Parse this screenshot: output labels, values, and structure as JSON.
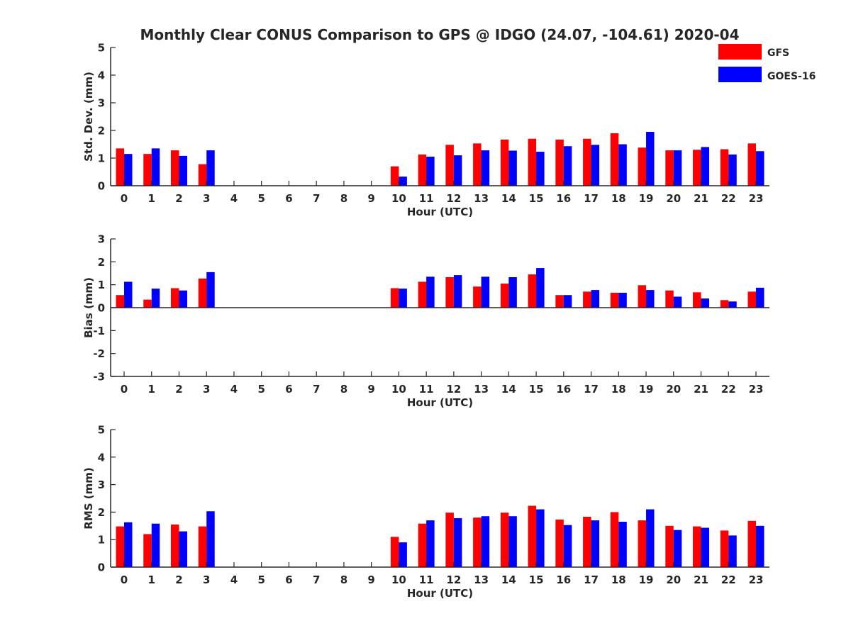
{
  "title": "Monthly Clear CONUS Comparison to GPS @ IDGO (24.07, -104.61) 2020-04",
  "colors": {
    "GFS": "#ff0000",
    "GOES-16": "#0000ff",
    "axis": "#262626"
  },
  "legend": {
    "placement": "top-right",
    "entries": [
      "GFS",
      "GOES-16"
    ]
  },
  "chart_data": [
    {
      "type": "bar",
      "xlabel": "Hour (UTC)",
      "ylabel": "Std. Dev. (mm)",
      "ylim": [
        0,
        5
      ],
      "yticks": [
        0,
        1,
        2,
        3,
        4,
        5
      ],
      "categories": [
        "0",
        "1",
        "2",
        "3",
        "4",
        "5",
        "6",
        "7",
        "8",
        "9",
        "10",
        "11",
        "12",
        "13",
        "14",
        "15",
        "16",
        "17",
        "18",
        "19",
        "20",
        "21",
        "22",
        "23"
      ],
      "series": [
        {
          "name": "GFS",
          "values": [
            1.35,
            1.15,
            1.28,
            0.78,
            null,
            null,
            null,
            null,
            null,
            null,
            0.7,
            1.13,
            1.48,
            1.53,
            1.67,
            1.7,
            1.67,
            1.7,
            1.9,
            1.38,
            1.28,
            1.3,
            1.32,
            1.53
          ]
        },
        {
          "name": "GOES-16",
          "values": [
            1.15,
            1.35,
            1.08,
            1.28,
            null,
            null,
            null,
            null,
            null,
            null,
            0.33,
            1.05,
            1.1,
            1.28,
            1.27,
            1.23,
            1.43,
            1.48,
            1.5,
            1.95,
            1.28,
            1.4,
            1.13,
            1.25
          ]
        }
      ]
    },
    {
      "type": "bar",
      "xlabel": "Hour (UTC)",
      "ylabel": "Bias (mm)",
      "ylim": [
        -3,
        3
      ],
      "yticks": [
        -3,
        -2,
        -1,
        0,
        1,
        2,
        3
      ],
      "categories": [
        "0",
        "1",
        "2",
        "3",
        "4",
        "5",
        "6",
        "7",
        "8",
        "9",
        "10",
        "11",
        "12",
        "13",
        "14",
        "15",
        "16",
        "17",
        "18",
        "19",
        "20",
        "21",
        "22",
        "23"
      ],
      "series": [
        {
          "name": "GFS",
          "values": [
            0.55,
            0.35,
            0.85,
            1.27,
            null,
            null,
            null,
            null,
            null,
            null,
            0.85,
            1.13,
            1.33,
            0.92,
            1.05,
            1.45,
            0.55,
            0.7,
            0.65,
            0.98,
            0.75,
            0.67,
            0.33,
            0.7
          ]
        },
        {
          "name": "GOES-16",
          "values": [
            1.13,
            0.83,
            0.75,
            1.55,
            null,
            null,
            null,
            null,
            null,
            null,
            0.83,
            1.35,
            1.42,
            1.35,
            1.33,
            1.73,
            0.55,
            0.77,
            0.65,
            0.77,
            0.48,
            0.4,
            0.27,
            0.87
          ]
        }
      ]
    },
    {
      "type": "bar",
      "xlabel": "Hour (UTC)",
      "ylabel": "RMS (mm)",
      "ylim": [
        0,
        5
      ],
      "yticks": [
        0,
        1,
        2,
        3,
        4,
        5
      ],
      "categories": [
        "0",
        "1",
        "2",
        "3",
        "4",
        "5",
        "6",
        "7",
        "8",
        "9",
        "10",
        "11",
        "12",
        "13",
        "14",
        "15",
        "16",
        "17",
        "18",
        "19",
        "20",
        "21",
        "22",
        "23"
      ],
      "series": [
        {
          "name": "GFS",
          "values": [
            1.48,
            1.2,
            1.55,
            1.48,
            null,
            null,
            null,
            null,
            null,
            null,
            1.1,
            1.58,
            1.98,
            1.8,
            1.98,
            2.23,
            1.73,
            1.83,
            2.0,
            1.7,
            1.5,
            1.48,
            1.33,
            1.68
          ]
        },
        {
          "name": "GOES-16",
          "values": [
            1.63,
            1.58,
            1.3,
            2.03,
            null,
            null,
            null,
            null,
            null,
            null,
            0.9,
            1.7,
            1.78,
            1.85,
            1.85,
            2.1,
            1.53,
            1.7,
            1.65,
            2.1,
            1.35,
            1.43,
            1.15,
            1.5
          ]
        }
      ]
    }
  ]
}
